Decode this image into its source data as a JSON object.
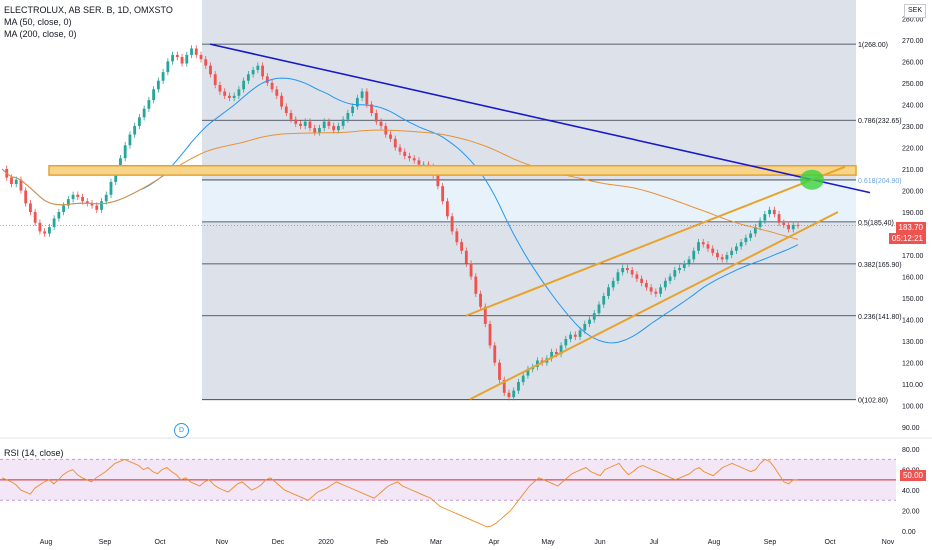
{
  "legend": {
    "symbol": "ELECTROLUX, AB SER. B, 1D, OMXSTO",
    "ma50": "MA (50, close, 0)",
    "ma200": "MA (200, close, 0)",
    "rsi": "RSI (14, close)"
  },
  "currency": "SEK",
  "badges": {
    "dividend": "D"
  },
  "colors": {
    "up": "#26a69a",
    "down": "#ef5350",
    "ma50": "#2196f3",
    "ma200": "#e69138",
    "trend": "#1a1ac8",
    "channel": "#e6a32e",
    "rsi": "#ef8c2a",
    "highlight": "#3cd23c"
  },
  "chart_data": [
    {
      "type": "candlestick",
      "title": "ELECTROLUX, AB SER. B, 1D, OMXSTO",
      "x_labels": [
        "Aug",
        "Sep",
        "Oct",
        "Nov",
        "Dec",
        "2020",
        "Feb",
        "Mar",
        "Apr",
        "May",
        "Jun",
        "Jul",
        "Aug",
        "Sep",
        "Oct",
        "Nov"
      ],
      "y_ticks": [
        90,
        100,
        110,
        120,
        130,
        140,
        150,
        160,
        170,
        180,
        190,
        200,
        210,
        220,
        230,
        240,
        250,
        260,
        270,
        280
      ],
      "ylim": [
        85,
        282
      ],
      "last_price": "183.70",
      "countdown": "05:12:21",
      "fib_levels": [
        {
          "label": "1(268.00)",
          "value": 268.0
        },
        {
          "label": "0.786(232.65)",
          "value": 232.65
        },
        {
          "label": "0.618(204.90)",
          "value": 204.9
        },
        {
          "label": "0.5(185.40)",
          "value": 185.4
        },
        {
          "label": "0.382(165.90)",
          "value": 165.9
        },
        {
          "label": "0.236(141.80)",
          "value": 141.8
        },
        {
          "label": "0(102.80)",
          "value": 102.8
        }
      ],
      "series_close": [
        210,
        206,
        203,
        205,
        200,
        194,
        190,
        185,
        181,
        180,
        183,
        187,
        190,
        193,
        196,
        198,
        197,
        195,
        194,
        193,
        191,
        195,
        198,
        204,
        210,
        215,
        221,
        226,
        230,
        234,
        238,
        242,
        247,
        251,
        255,
        260,
        263,
        262,
        259,
        263,
        266,
        263,
        261,
        258,
        254,
        249,
        246,
        244,
        243,
        244,
        247,
        251,
        254,
        256,
        258,
        253,
        250,
        247,
        244,
        239,
        236,
        233,
        231,
        230,
        232,
        229,
        227,
        229,
        232,
        230,
        228,
        230,
        233,
        236,
        239,
        243,
        246,
        240,
        236,
        232,
        230,
        226,
        224,
        220,
        218,
        216,
        215,
        214,
        212,
        212,
        211,
        207,
        202,
        195,
        188,
        181,
        176,
        172,
        166,
        160,
        152,
        146,
        138,
        128,
        120,
        112,
        106,
        104,
        107,
        111,
        114,
        117,
        118,
        121,
        120,
        122,
        125,
        124,
        128,
        131,
        133,
        132,
        135,
        138,
        140,
        143,
        147,
        151,
        155,
        158,
        162,
        164,
        163,
        161,
        159,
        157,
        155,
        153,
        152,
        155,
        158,
        160,
        163,
        164,
        166,
        168,
        172,
        176,
        175,
        173,
        171,
        169,
        168,
        170,
        172,
        174,
        176,
        178,
        180,
        183,
        186,
        189,
        191,
        189,
        185,
        184,
        182,
        184,
        183.7
      ]
    },
    {
      "type": "line",
      "title": "RSI (14, close)",
      "x_labels": [
        "Aug",
        "Sep",
        "Oct",
        "Nov",
        "Dec",
        "2020",
        "Feb",
        "Mar",
        "Apr",
        "May",
        "Jun",
        "Jul",
        "Aug",
        "Sep",
        "Oct",
        "Nov"
      ],
      "y_ticks": [
        0.0,
        20.0,
        40.0,
        60.0,
        80.0
      ],
      "ylim": [
        0,
        85
      ],
      "last_value": "50.00",
      "band": [
        30,
        70
      ],
      "values": [
        52,
        50,
        48,
        45,
        40,
        38,
        36,
        42,
        45,
        48,
        50,
        46,
        50,
        55,
        58,
        60,
        55,
        52,
        50,
        48,
        52,
        55,
        58,
        62,
        66,
        68,
        70,
        68,
        66,
        64,
        60,
        62,
        58,
        56,
        60,
        62,
        58,
        55,
        50,
        52,
        48,
        46,
        44,
        48,
        50,
        45,
        42,
        40,
        38,
        42,
        46,
        48,
        44,
        40,
        42,
        45,
        50,
        52,
        48,
        44,
        40,
        38,
        36,
        34,
        32,
        30,
        34,
        38,
        40,
        42,
        45,
        48,
        46,
        44,
        42,
        40,
        38,
        36,
        34,
        32,
        36,
        40,
        44,
        46,
        48,
        44,
        42,
        40,
        38,
        36,
        34,
        32,
        28,
        24,
        22,
        20,
        18,
        16,
        14,
        12,
        10,
        8,
        6,
        4,
        5,
        8,
        12,
        16,
        20,
        26,
        32,
        38,
        44,
        48,
        52,
        50,
        48,
        46,
        44,
        48,
        52,
        56,
        58,
        60,
        62,
        58,
        56,
        54,
        60,
        62,
        64,
        66,
        60,
        55,
        58,
        62,
        64,
        62,
        60,
        58,
        56,
        54,
        52,
        50,
        52,
        54,
        56,
        60,
        62,
        58,
        56,
        54,
        58,
        62,
        64,
        66,
        64,
        62,
        60,
        58,
        60,
        66,
        70,
        68,
        62,
        55,
        48,
        46,
        50,
        50
      ]
    }
  ]
}
